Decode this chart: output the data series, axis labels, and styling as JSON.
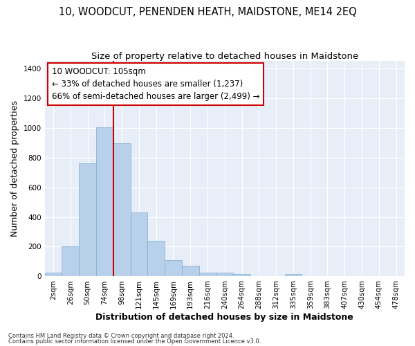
{
  "title": "10, WOODCUT, PENENDEN HEATH, MAIDSTONE, ME14 2EQ",
  "subtitle": "Size of property relative to detached houses in Maidstone",
  "xlabel": "Distribution of detached houses by size in Maidstone",
  "ylabel": "Number of detached properties",
  "categories": [
    "2sqm",
    "26sqm",
    "50sqm",
    "74sqm",
    "98sqm",
    "121sqm",
    "145sqm",
    "169sqm",
    "193sqm",
    "216sqm",
    "240sqm",
    "264sqm",
    "288sqm",
    "312sqm",
    "335sqm",
    "359sqm",
    "383sqm",
    "407sqm",
    "430sqm",
    "454sqm",
    "478sqm"
  ],
  "values": [
    25,
    200,
    760,
    1005,
    895,
    430,
    240,
    110,
    70,
    25,
    25,
    15,
    0,
    0,
    15,
    0,
    0,
    0,
    0,
    0,
    0
  ],
  "bar_color": "#b8d0ea",
  "bar_edge_color": "#7aadd4",
  "vline_color": "#cc0000",
  "annotation_text": "10 WOODCUT: 105sqm\n← 33% of detached houses are smaller (1,237)\n66% of semi-detached houses are larger (2,499) →",
  "annotation_box_color": "white",
  "annotation_box_edge": "#cc0000",
  "ylim": [
    0,
    1450
  ],
  "yticks": [
    0,
    200,
    400,
    600,
    800,
    1000,
    1200,
    1400
  ],
  "background_color": "#e8eef8",
  "footer_line1": "Contains HM Land Registry data © Crown copyright and database right 2024.",
  "footer_line2": "Contains public sector information licensed under the Open Government Licence v3.0.",
  "title_fontsize": 10.5,
  "subtitle_fontsize": 9.5,
  "axis_label_fontsize": 9,
  "tick_fontsize": 7.5,
  "annotation_fontsize": 8.5
}
